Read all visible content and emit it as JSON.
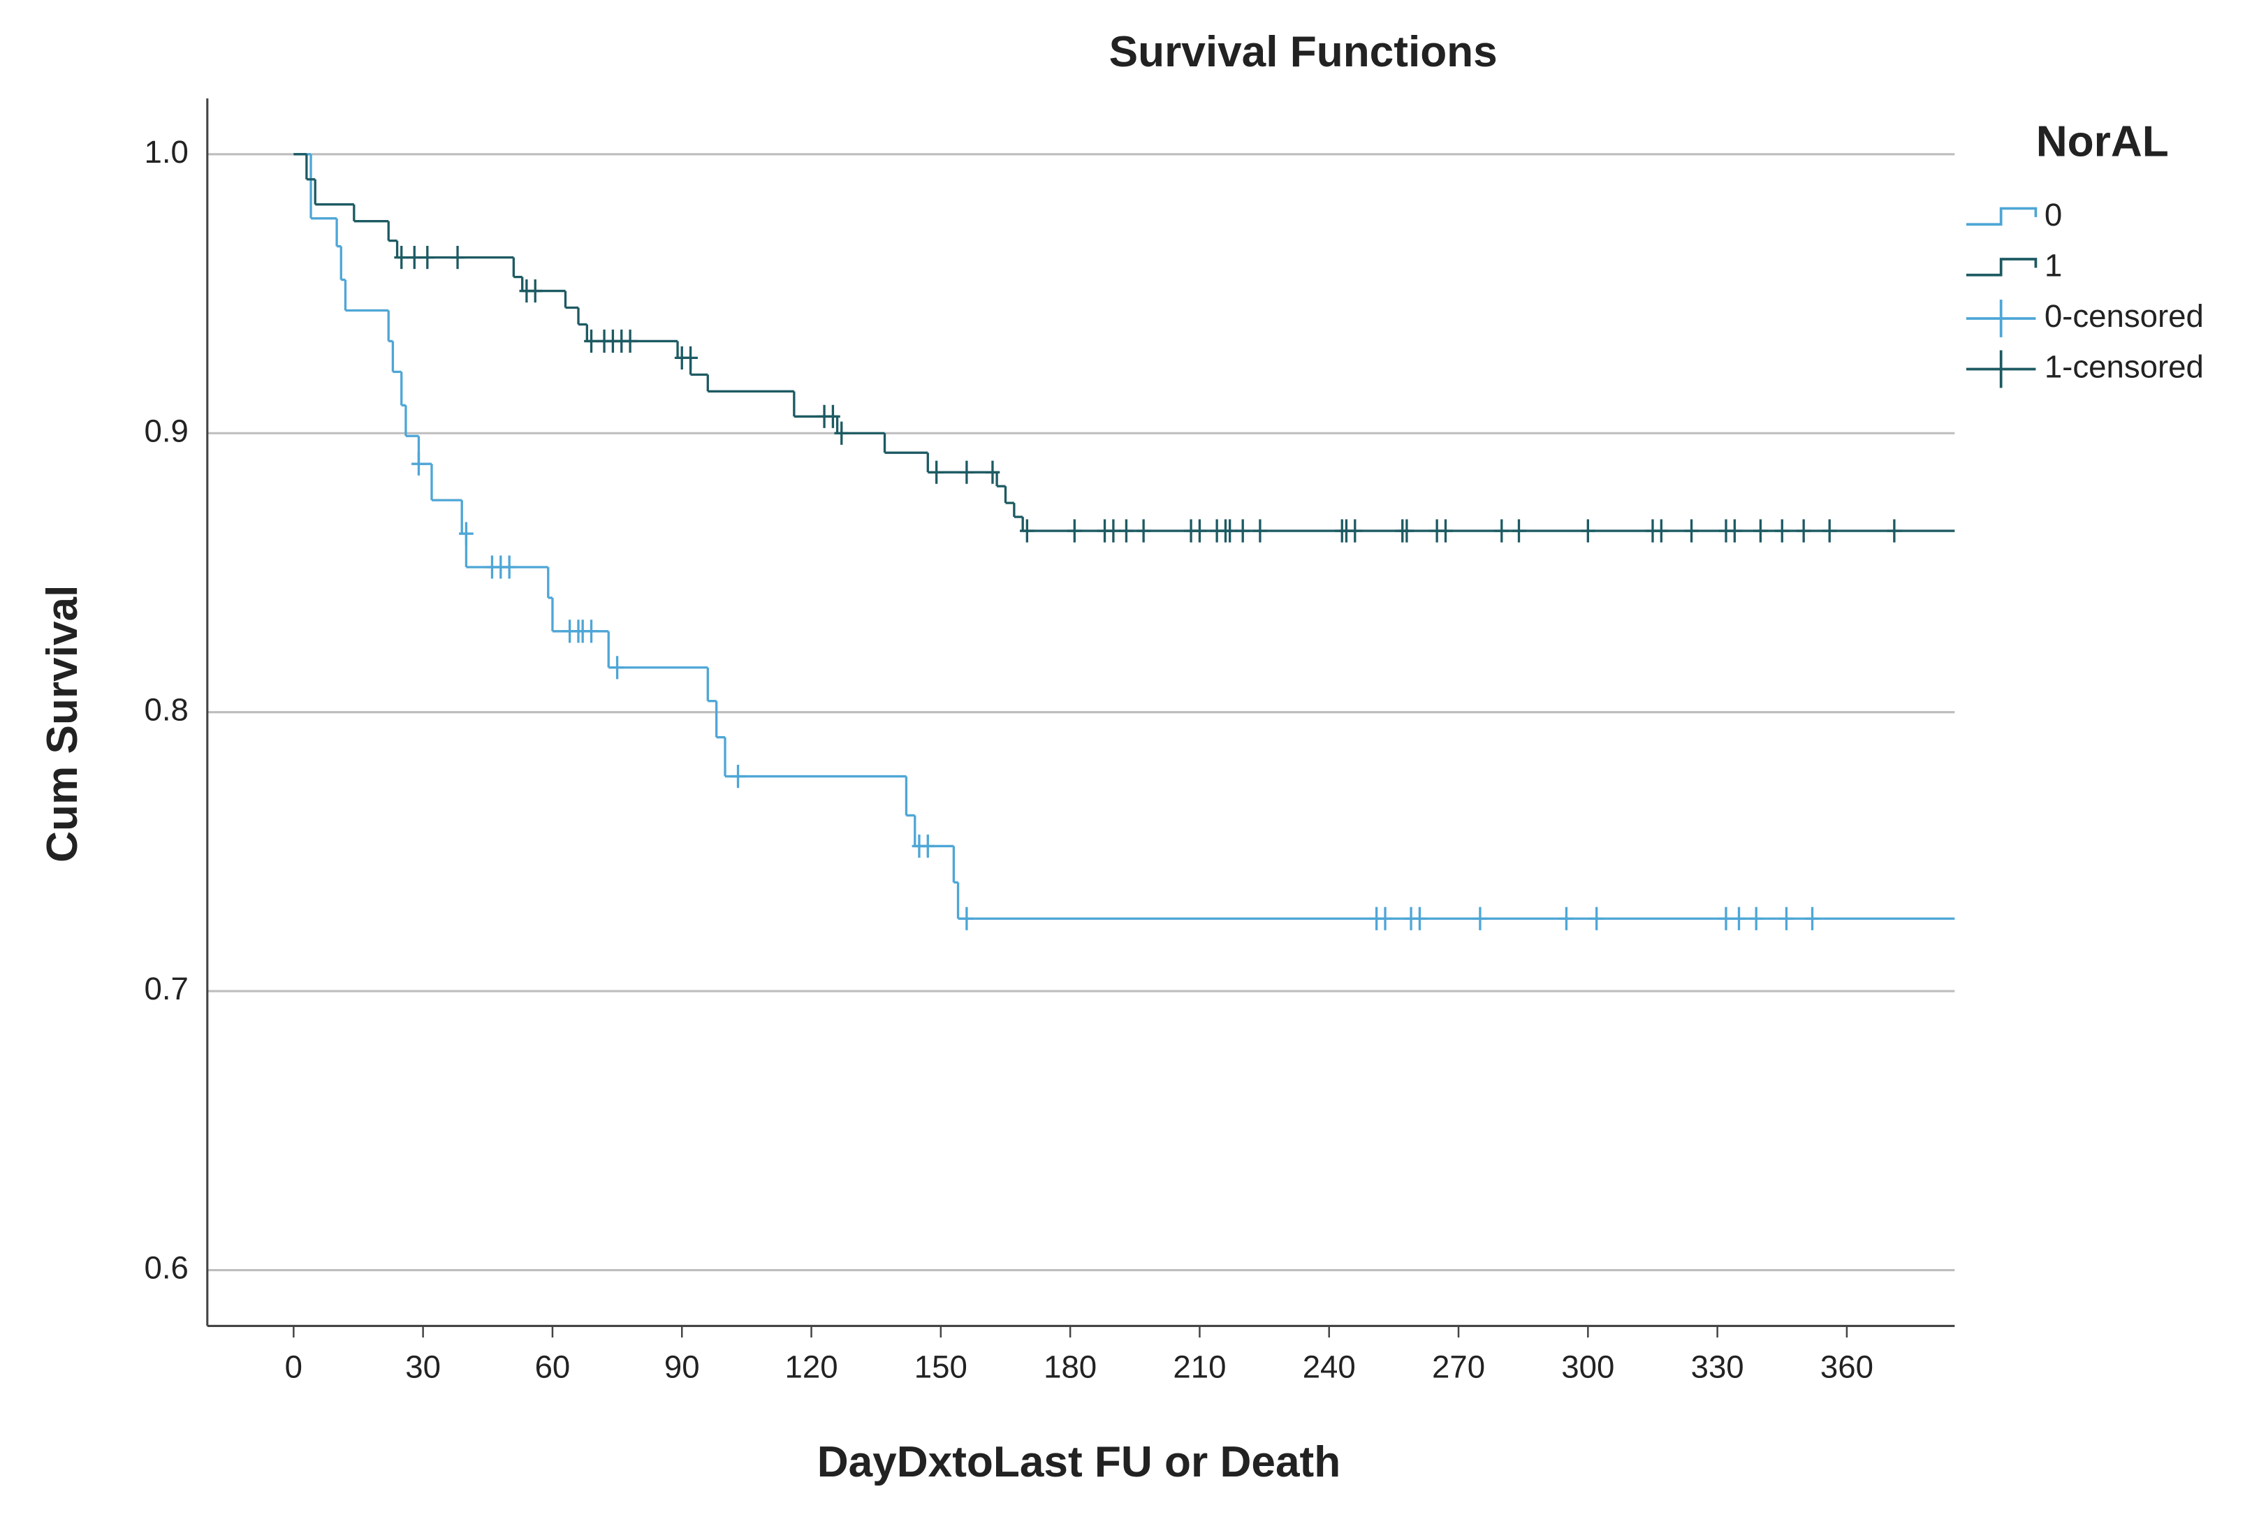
{
  "chart_data": {
    "type": "step",
    "title": "Survival Functions",
    "x_label": "DayDxtoLast FU or Death",
    "y_label": "Cum Survival",
    "legend_title": "NorAL",
    "xlim": [
      -20,
      385
    ],
    "ylim": [
      0.58,
      1.02
    ],
    "xticks": [
      0,
      30,
      60,
      90,
      120,
      150,
      180,
      210,
      240,
      270,
      300,
      330,
      360
    ],
    "yticks": [
      0.6,
      0.7,
      0.8,
      0.9,
      {
        "value": 1,
        "label": "1.0"
      }
    ],
    "grid": true,
    "series": [
      {
        "name": "0",
        "color": "#4ea6d6",
        "x": [
          0,
          4,
          10,
          11,
          12,
          22,
          23,
          25,
          26,
          29,
          32,
          39,
          40,
          59,
          60,
          73,
          96,
          98,
          100,
          142,
          144,
          153,
          154
        ],
        "values": [
          1,
          0.977,
          0.967,
          0.955,
          0.944,
          0.933,
          0.922,
          0.91,
          0.899,
          0.889,
          0.876,
          0.864,
          0.852,
          0.841,
          0.829,
          0.816,
          0.804,
          0.791,
          0.777,
          0.763,
          0.752,
          0.739,
          0.726
        ]
      },
      {
        "name": "1",
        "color": "#1d5a62",
        "x": [
          0,
          3,
          5,
          14,
          22,
          24,
          51,
          53,
          63,
          66,
          68,
          89,
          92,
          96,
          116,
          126,
          137,
          147,
          163,
          165,
          167,
          169
        ],
        "values": [
          1,
          0.991,
          0.982,
          0.976,
          0.969,
          0.963,
          0.956,
          0.951,
          0.945,
          0.939,
          0.933,
          0.927,
          0.921,
          0.915,
          0.906,
          0.9,
          0.893,
          0.886,
          0.881,
          0.875,
          0.87,
          0.865
        ]
      },
      {
        "name": "0-censored",
        "color": "#4ea6d6",
        "marker": "plus",
        "x": [
          29,
          40,
          46,
          48,
          50,
          64,
          66,
          67,
          69,
          75,
          103,
          145,
          147,
          156,
          251,
          253,
          259,
          261,
          275,
          295,
          302,
          332,
          335,
          339,
          346,
          352
        ],
        "values": [
          0.889,
          0.864,
          0.852,
          0.852,
          0.852,
          0.829,
          0.829,
          0.829,
          0.829,
          0.816,
          0.777,
          0.752,
          0.752,
          0.726,
          0.726,
          0.726,
          0.726,
          0.726,
          0.726,
          0.726,
          0.726,
          0.726,
          0.726,
          0.726,
          0.726,
          0.726
        ]
      },
      {
        "name": "1-censored",
        "color": "#1d5a62",
        "marker": "plus",
        "x": [
          25,
          28,
          31,
          38,
          54,
          56,
          69,
          72,
          74,
          76,
          78,
          90,
          92,
          123,
          125,
          127,
          149,
          156,
          162,
          170,
          181,
          188,
          190,
          193,
          197,
          208,
          210,
          214,
          216,
          217,
          220,
          224,
          243,
          244,
          246,
          257,
          258,
          265,
          267,
          280,
          284,
          300,
          315,
          317,
          324,
          332,
          334,
          340,
          345,
          350,
          356,
          371
        ],
        "values": [
          0.963,
          0.963,
          0.963,
          0.963,
          0.951,
          0.951,
          0.933,
          0.933,
          0.933,
          0.933,
          0.933,
          0.927,
          0.927,
          0.906,
          0.906,
          0.9,
          0.886,
          0.886,
          0.886,
          0.865,
          0.865,
          0.865,
          0.865,
          0.865,
          0.865,
          0.865,
          0.865,
          0.865,
          0.865,
          0.865,
          0.865,
          0.865,
          0.865,
          0.865,
          0.865,
          0.865,
          0.865,
          0.865,
          0.865,
          0.865,
          0.865,
          0.865,
          0.865,
          0.865,
          0.865,
          0.865,
          0.865,
          0.865,
          0.865,
          0.865,
          0.865,
          0.865
        ]
      }
    ]
  }
}
